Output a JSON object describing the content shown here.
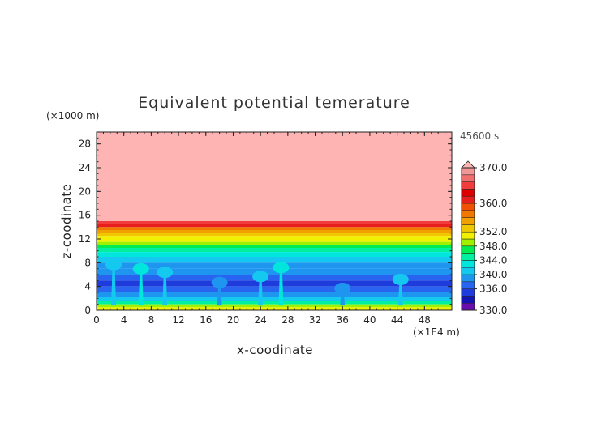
{
  "chart_data": {
    "type": "heatmap",
    "title": "Equivalent potential temerature",
    "xlabel": "x-coodinate",
    "ylabel": "z-coodinate",
    "x_unit": "(×1E4 m)",
    "y_unit": "(×1000 m)",
    "time_label": "45600 s",
    "x_ticks": [
      "0",
      "4",
      "8",
      "12",
      "16",
      "20",
      "24",
      "28",
      "32",
      "36",
      "40",
      "44",
      "48"
    ],
    "y_ticks": [
      "0",
      "4",
      "8",
      "12",
      "16",
      "20",
      "24",
      "28"
    ],
    "xlim": [
      0,
      52
    ],
    "ylim": [
      0,
      30
    ],
    "colorbar": {
      "labels": [
        "330.0",
        "336.0",
        "340.0",
        "344.0",
        "348.0",
        "352.0",
        "360.0",
        "370.0"
      ],
      "levels": [
        330,
        332,
        334,
        336,
        338,
        340,
        342,
        344,
        346,
        348,
        350,
        352,
        354,
        356,
        358,
        360,
        362,
        364,
        366,
        368,
        370
      ],
      "colors": [
        "#6a0dad",
        "#1414b4",
        "#1e3cdc",
        "#2864f0",
        "#1e96f0",
        "#14c8f0",
        "#00e6dc",
        "#00f0a0",
        "#00ec50",
        "#a0f000",
        "#f0f000",
        "#f0c800",
        "#f0a000",
        "#f07800",
        "#f05000",
        "#e61e1e",
        "#dc0000",
        "#f03c3c",
        "#f06e6e",
        "#f09696",
        "#ffb4b4"
      ],
      "extend": "max"
    },
    "layers": [
      {
        "z_bottom": 15,
        "z_top": 30,
        "value": 370
      },
      {
        "z_bottom": 14.5,
        "z_top": 15,
        "value": 364
      },
      {
        "z_bottom": 14,
        "z_top": 14.5,
        "value": 360
      },
      {
        "z_bottom": 13.5,
        "z_top": 14,
        "value": 356
      },
      {
        "z_bottom": 13,
        "z_top": 13.5,
        "value": 354
      },
      {
        "z_bottom": 12.5,
        "z_top": 13,
        "value": 352
      },
      {
        "z_bottom": 12,
        "z_top": 12.5,
        "value": 351
      },
      {
        "z_bottom": 11.5,
        "z_top": 12,
        "value": 350
      },
      {
        "z_bottom": 11,
        "z_top": 11.5,
        "value": 348
      },
      {
        "z_bottom": 10.5,
        "z_top": 11,
        "value": 346
      },
      {
        "z_bottom": 9.8,
        "z_top": 10.5,
        "value": 344
      },
      {
        "z_bottom": 9,
        "z_top": 9.8,
        "value": 342
      },
      {
        "z_bottom": 8,
        "z_top": 9,
        "value": 340
      },
      {
        "z_bottom": 7,
        "z_top": 8,
        "value": 339
      },
      {
        "z_bottom": 6,
        "z_top": 7,
        "value": 338
      },
      {
        "z_bottom": 5,
        "z_top": 6,
        "value": 336
      },
      {
        "z_bottom": 4,
        "z_top": 5,
        "value": 334
      },
      {
        "z_bottom": 3,
        "z_top": 4,
        "value": 336
      },
      {
        "z_bottom": 2.2,
        "z_top": 3,
        "value": 339
      },
      {
        "z_bottom": 1.5,
        "z_top": 2.2,
        "value": 341
      },
      {
        "z_bottom": 1,
        "z_top": 1.5,
        "value": 344
      },
      {
        "z_bottom": 0.5,
        "z_top": 1,
        "value": 348
      },
      {
        "z_bottom": 0,
        "z_top": 0.5,
        "value": 351
      }
    ],
    "plumes": [
      {
        "x": 2.5,
        "z_top": 8.5,
        "value": 340
      },
      {
        "x": 6.5,
        "z_top": 7.8,
        "value": 342
      },
      {
        "x": 10,
        "z_top": 7.2,
        "value": 340
      },
      {
        "x": 18,
        "z_top": 5.5,
        "value": 338
      },
      {
        "x": 24,
        "z_top": 6.5,
        "value": 340
      },
      {
        "x": 27,
        "z_top": 8,
        "value": 342
      },
      {
        "x": 36,
        "z_top": 4.5,
        "value": 338
      },
      {
        "x": 44.5,
        "z_top": 6,
        "value": 340
      }
    ]
  }
}
